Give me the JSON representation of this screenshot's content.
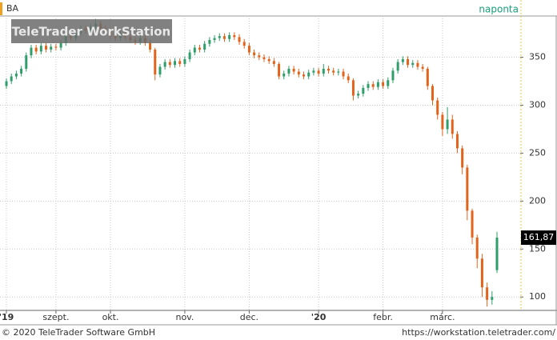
{
  "header": {
    "symbol": "BA",
    "interval": "naponta",
    "watermark": "TeleTrader WorkStation"
  },
  "footer": {
    "copyright": "© 2020 TeleTrader Software GmbH",
    "url": "https://workstation.teletrader.com/"
  },
  "chart_data": {
    "type": "candlestick",
    "categories": [
      "'19",
      null,
      null,
      null,
      null,
      null,
      null,
      null,
      null,
      null,
      "szept.",
      null,
      null,
      null,
      null,
      null,
      null,
      null,
      null,
      null,
      null,
      "okt.",
      null,
      null,
      null,
      null,
      null,
      null,
      null,
      null,
      null,
      null,
      null,
      null,
      null,
      null,
      "nov.",
      null,
      null,
      null,
      null,
      null,
      null,
      null,
      null,
      null,
      null,
      null,
      null,
      "dec.",
      null,
      null,
      null,
      null,
      null,
      null,
      null,
      null,
      null,
      null,
      null,
      null,
      null,
      "'20",
      null,
      null,
      null,
      null,
      null,
      null,
      null,
      null,
      null,
      null,
      null,
      null,
      "febr.",
      null,
      null,
      null,
      null,
      null,
      null,
      null,
      null,
      null,
      null,
      null,
      "márc.",
      null,
      null,
      null,
      null,
      null,
      null,
      null,
      null,
      null,
      null,
      null
    ],
    "open": [
      320,
      325,
      330,
      333,
      338,
      352,
      360,
      356,
      362,
      358,
      361,
      360,
      365,
      372,
      370,
      375,
      380,
      378,
      382,
      385,
      380,
      378,
      372,
      370,
      374,
      371,
      368,
      366,
      370,
      365,
      358,
      332,
      340,
      345,
      342,
      346,
      343,
      348,
      355,
      360,
      358,
      364,
      368,
      370,
      372,
      369,
      373,
      371,
      366,
      362,
      355,
      352,
      350,
      348,
      346,
      343,
      330,
      333,
      338,
      335,
      332,
      330,
      334,
      336,
      333,
      338,
      336,
      334,
      335,
      330,
      326,
      310,
      312,
      318,
      322,
      319,
      324,
      320,
      326,
      336,
      345,
      348,
      342,
      344,
      340,
      338,
      320,
      305,
      290,
      275,
      285,
      270,
      255,
      235,
      190,
      162,
      140,
      110,
      97,
      128
    ],
    "high": [
      328,
      333,
      336,
      341,
      355,
      363,
      363,
      365,
      365,
      364,
      364,
      368,
      375,
      375,
      378,
      383,
      383,
      385,
      390,
      388,
      383,
      381,
      375,
      377,
      377,
      374,
      371,
      373,
      373,
      368,
      360,
      343,
      348,
      348,
      349,
      349,
      351,
      358,
      363,
      363,
      367,
      371,
      373,
      375,
      375,
      376,
      376,
      374,
      369,
      365,
      358,
      355,
      353,
      351,
      349,
      345,
      336,
      341,
      341,
      338,
      335,
      337,
      339,
      339,
      343,
      341,
      339,
      338,
      338,
      333,
      328,
      315,
      321,
      325,
      325,
      327,
      327,
      329,
      339,
      348,
      351,
      351,
      347,
      347,
      343,
      340,
      322,
      308,
      293,
      298,
      290,
      273,
      258,
      238,
      192,
      165,
      145,
      115,
      106,
      168
    ],
    "low": [
      317,
      322,
      327,
      330,
      335,
      349,
      353,
      353,
      355,
      355,
      357,
      357,
      362,
      367,
      367,
      372,
      375,
      375,
      379,
      377,
      375,
      369,
      367,
      367,
      368,
      365,
      363,
      363,
      362,
      355,
      326,
      329,
      337,
      339,
      339,
      340,
      340,
      345,
      352,
      355,
      355,
      361,
      365,
      367,
      366,
      366,
      368,
      363,
      359,
      352,
      349,
      347,
      345,
      343,
      340,
      327,
      327,
      330,
      332,
      329,
      327,
      327,
      331,
      330,
      330,
      333,
      331,
      331,
      327,
      323,
      305,
      307,
      309,
      315,
      316,
      316,
      317,
      317,
      323,
      333,
      342,
      339,
      339,
      337,
      335,
      316,
      300,
      285,
      268,
      270,
      265,
      250,
      228,
      180,
      155,
      130,
      100,
      90,
      92,
      125
    ],
    "close": [
      325,
      330,
      333,
      338,
      352,
      360,
      356,
      362,
      358,
      361,
      360,
      365,
      372,
      370,
      375,
      380,
      378,
      382,
      385,
      380,
      378,
      372,
      370,
      374,
      371,
      368,
      366,
      370,
      365,
      358,
      332,
      340,
      345,
      342,
      346,
      343,
      348,
      355,
      360,
      358,
      364,
      368,
      370,
      372,
      369,
      373,
      371,
      366,
      362,
      355,
      352,
      350,
      348,
      346,
      343,
      330,
      333,
      338,
      335,
      332,
      330,
      334,
      336,
      333,
      338,
      336,
      334,
      335,
      330,
      326,
      310,
      312,
      318,
      322,
      319,
      324,
      320,
      326,
      336,
      345,
      348,
      342,
      344,
      340,
      338,
      320,
      305,
      290,
      275,
      285,
      270,
      255,
      235,
      190,
      162,
      140,
      110,
      97,
      100,
      161.87
    ],
    "up_color": "#2e9e6a",
    "down_color": "#e2641c",
    "last_price": {
      "value": 161.87,
      "label": "161,87"
    },
    "ylim": [
      86,
      393
    ],
    "yticks": [
      100,
      150,
      200,
      250,
      300,
      350
    ],
    "grid": true
  }
}
